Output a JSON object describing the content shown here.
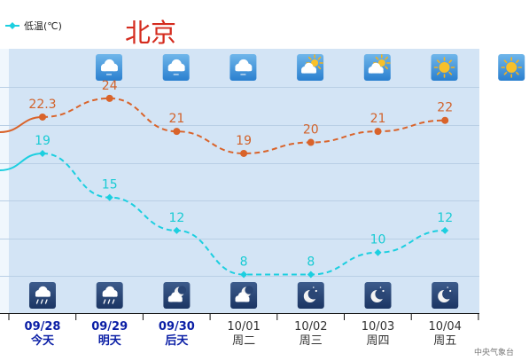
{
  "title": "北京",
  "legend": {
    "low_label": "低温(℃)"
  },
  "credit": "中央气象台",
  "colors": {
    "high": "#d9632a",
    "low": "#1ccfe0",
    "plot_bg": "#d3e4f5",
    "left_strip": "#f0f7fd",
    "grid": "#b9cfe5",
    "today_text": "#0b1fa6",
    "other_text": "#333333",
    "title": "#d42b1e"
  },
  "days": [
    {
      "date": "09/28",
      "label": "今天",
      "day_icon": "cloudy-icon",
      "night_icon": "rain-night-icon",
      "highlight": true
    },
    {
      "date": "09/29",
      "label": "明天",
      "day_icon": "cloudy-icon",
      "night_icon": "rain-night-icon",
      "highlight": true
    },
    {
      "date": "09/30",
      "label": "后天",
      "day_icon": "cloudy-icon",
      "night_icon": "cloudy-moon-icon",
      "highlight": true
    },
    {
      "date": "10/01",
      "label": "周二",
      "day_icon": "partly-cloudy-icon",
      "night_icon": "cloudy-moon-icon",
      "highlight": false
    },
    {
      "date": "10/02",
      "label": "周三",
      "day_icon": "partly-cloudy-icon",
      "night_icon": "moon-icon",
      "highlight": false
    },
    {
      "date": "10/03",
      "label": "周四",
      "day_icon": "sunny-icon",
      "night_icon": "moon-icon",
      "highlight": false
    },
    {
      "date": "10/04",
      "label": "周五",
      "day_icon": "sunny-icon",
      "night_icon": "moon-icon",
      "highlight": false
    }
  ],
  "chart_data": {
    "type": "line",
    "categories": [
      "09/28",
      "09/29",
      "09/30",
      "10/01",
      "10/02",
      "10/03",
      "10/04"
    ],
    "series": [
      {
        "key": "high",
        "values": [
          22.3,
          24,
          21,
          19,
          20,
          21,
          22
        ]
      },
      {
        "key": "low",
        "name": "低温(℃)",
        "values": [
          19,
          15,
          12,
          8,
          8,
          10,
          12
        ]
      }
    ],
    "ylim": [
      4.5,
      28.5
    ],
    "grid": true,
    "legend_position": "top-left"
  }
}
